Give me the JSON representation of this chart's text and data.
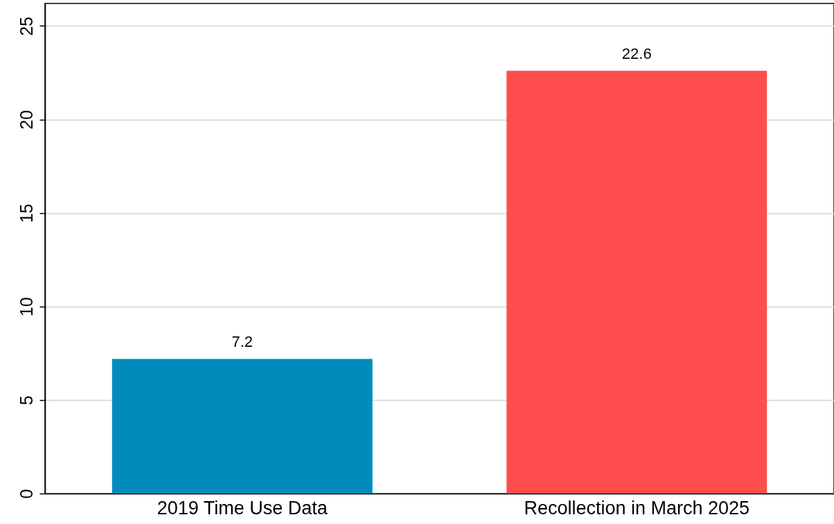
{
  "chart_data": {
    "type": "bar",
    "categories": [
      "2019 Time Use Data",
      "Recollection in March 2025"
    ],
    "values": [
      7.2,
      22.6
    ],
    "colors": [
      "#008bbc",
      "#ff4d4d"
    ],
    "ylim": [
      0,
      26.2
    ],
    "yticks": [
      0,
      5,
      10,
      15,
      20,
      25
    ],
    "grid": "y",
    "data_labels": true
  }
}
